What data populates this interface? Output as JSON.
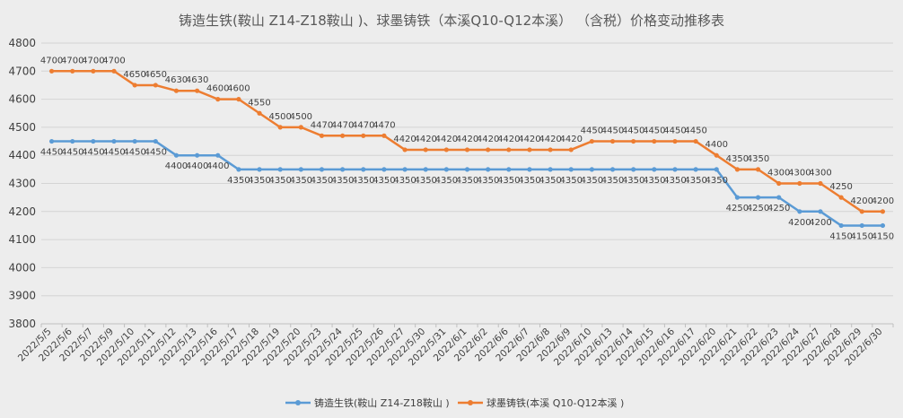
{
  "chart_data": {
    "type": "line",
    "title": "铸造生铁(鞍山 Z14-Z18鞍山 )、球墨铸铁（本溪Q10-Q12本溪） （含税）价格变动推移表",
    "xlabel": "",
    "ylabel": "",
    "ylim": [
      3800,
      4800
    ],
    "yticks": [
      3800,
      3900,
      4000,
      4100,
      4200,
      4300,
      4400,
      4500,
      4600,
      4700,
      4800
    ],
    "grid": true,
    "legend_position": "bottom",
    "categories": [
      "2022/5/5",
      "2022/5/6",
      "2022/5/7",
      "2022/5/9",
      "2022/5/10",
      "2022/5/11",
      "2022/5/12",
      "2022/5/13",
      "2022/5/16",
      "2022/5/17",
      "2022/5/18",
      "2022/5/19",
      "2022/5/20",
      "2022/5/23",
      "2022/5/24",
      "2022/5/25",
      "2022/5/26",
      "2022/5/27",
      "2022/5/30",
      "2022/5/31",
      "2022/6/1",
      "2022/6/2",
      "2022/6/6",
      "2022/6/7",
      "2022/6/8",
      "2022/6/9",
      "2022/6/10",
      "2022/6/13",
      "2022/6/14",
      "2022/6/15",
      "2022/6/16",
      "2022/6/17",
      "2022/6/20",
      "2022/6/21",
      "2022/6/22",
      "2022/6/23",
      "2022/6/24",
      "2022/6/27",
      "2022/6/28",
      "2022/6/29",
      "2022/6/30"
    ],
    "series": [
      {
        "name": "铸造生铁(鞍山 Z14-Z18鞍山 )",
        "color": "#5b9bd5",
        "values": [
          4450,
          4450,
          4450,
          4450,
          4450,
          4450,
          4400,
          4400,
          4400,
          4350,
          4350,
          4350,
          4350,
          4350,
          4350,
          4350,
          4350,
          4350,
          4350,
          4350,
          4350,
          4350,
          4350,
          4350,
          4350,
          4350,
          4350,
          4350,
          4350,
          4350,
          4350,
          4350,
          4350,
          4250,
          4250,
          4250,
          4200,
          4200,
          4150,
          4150,
          4150
        ]
      },
      {
        "name": "球墨铸铁(本溪 Q10-Q12本溪 )",
        "color": "#ed7d31",
        "values": [
          4700,
          4700,
          4700,
          4700,
          4650,
          4650,
          4630,
          4630,
          4600,
          4600,
          4550,
          4500,
          4500,
          4470,
          4470,
          4470,
          4470,
          4420,
          4420,
          4420,
          4420,
          4420,
          4420,
          4420,
          4420,
          4420,
          4450,
          4450,
          4450,
          4450,
          4450,
          4450,
          4400,
          4350,
          4350,
          4300,
          4300,
          4300,
          4250,
          4200,
          4200
        ]
      }
    ]
  }
}
